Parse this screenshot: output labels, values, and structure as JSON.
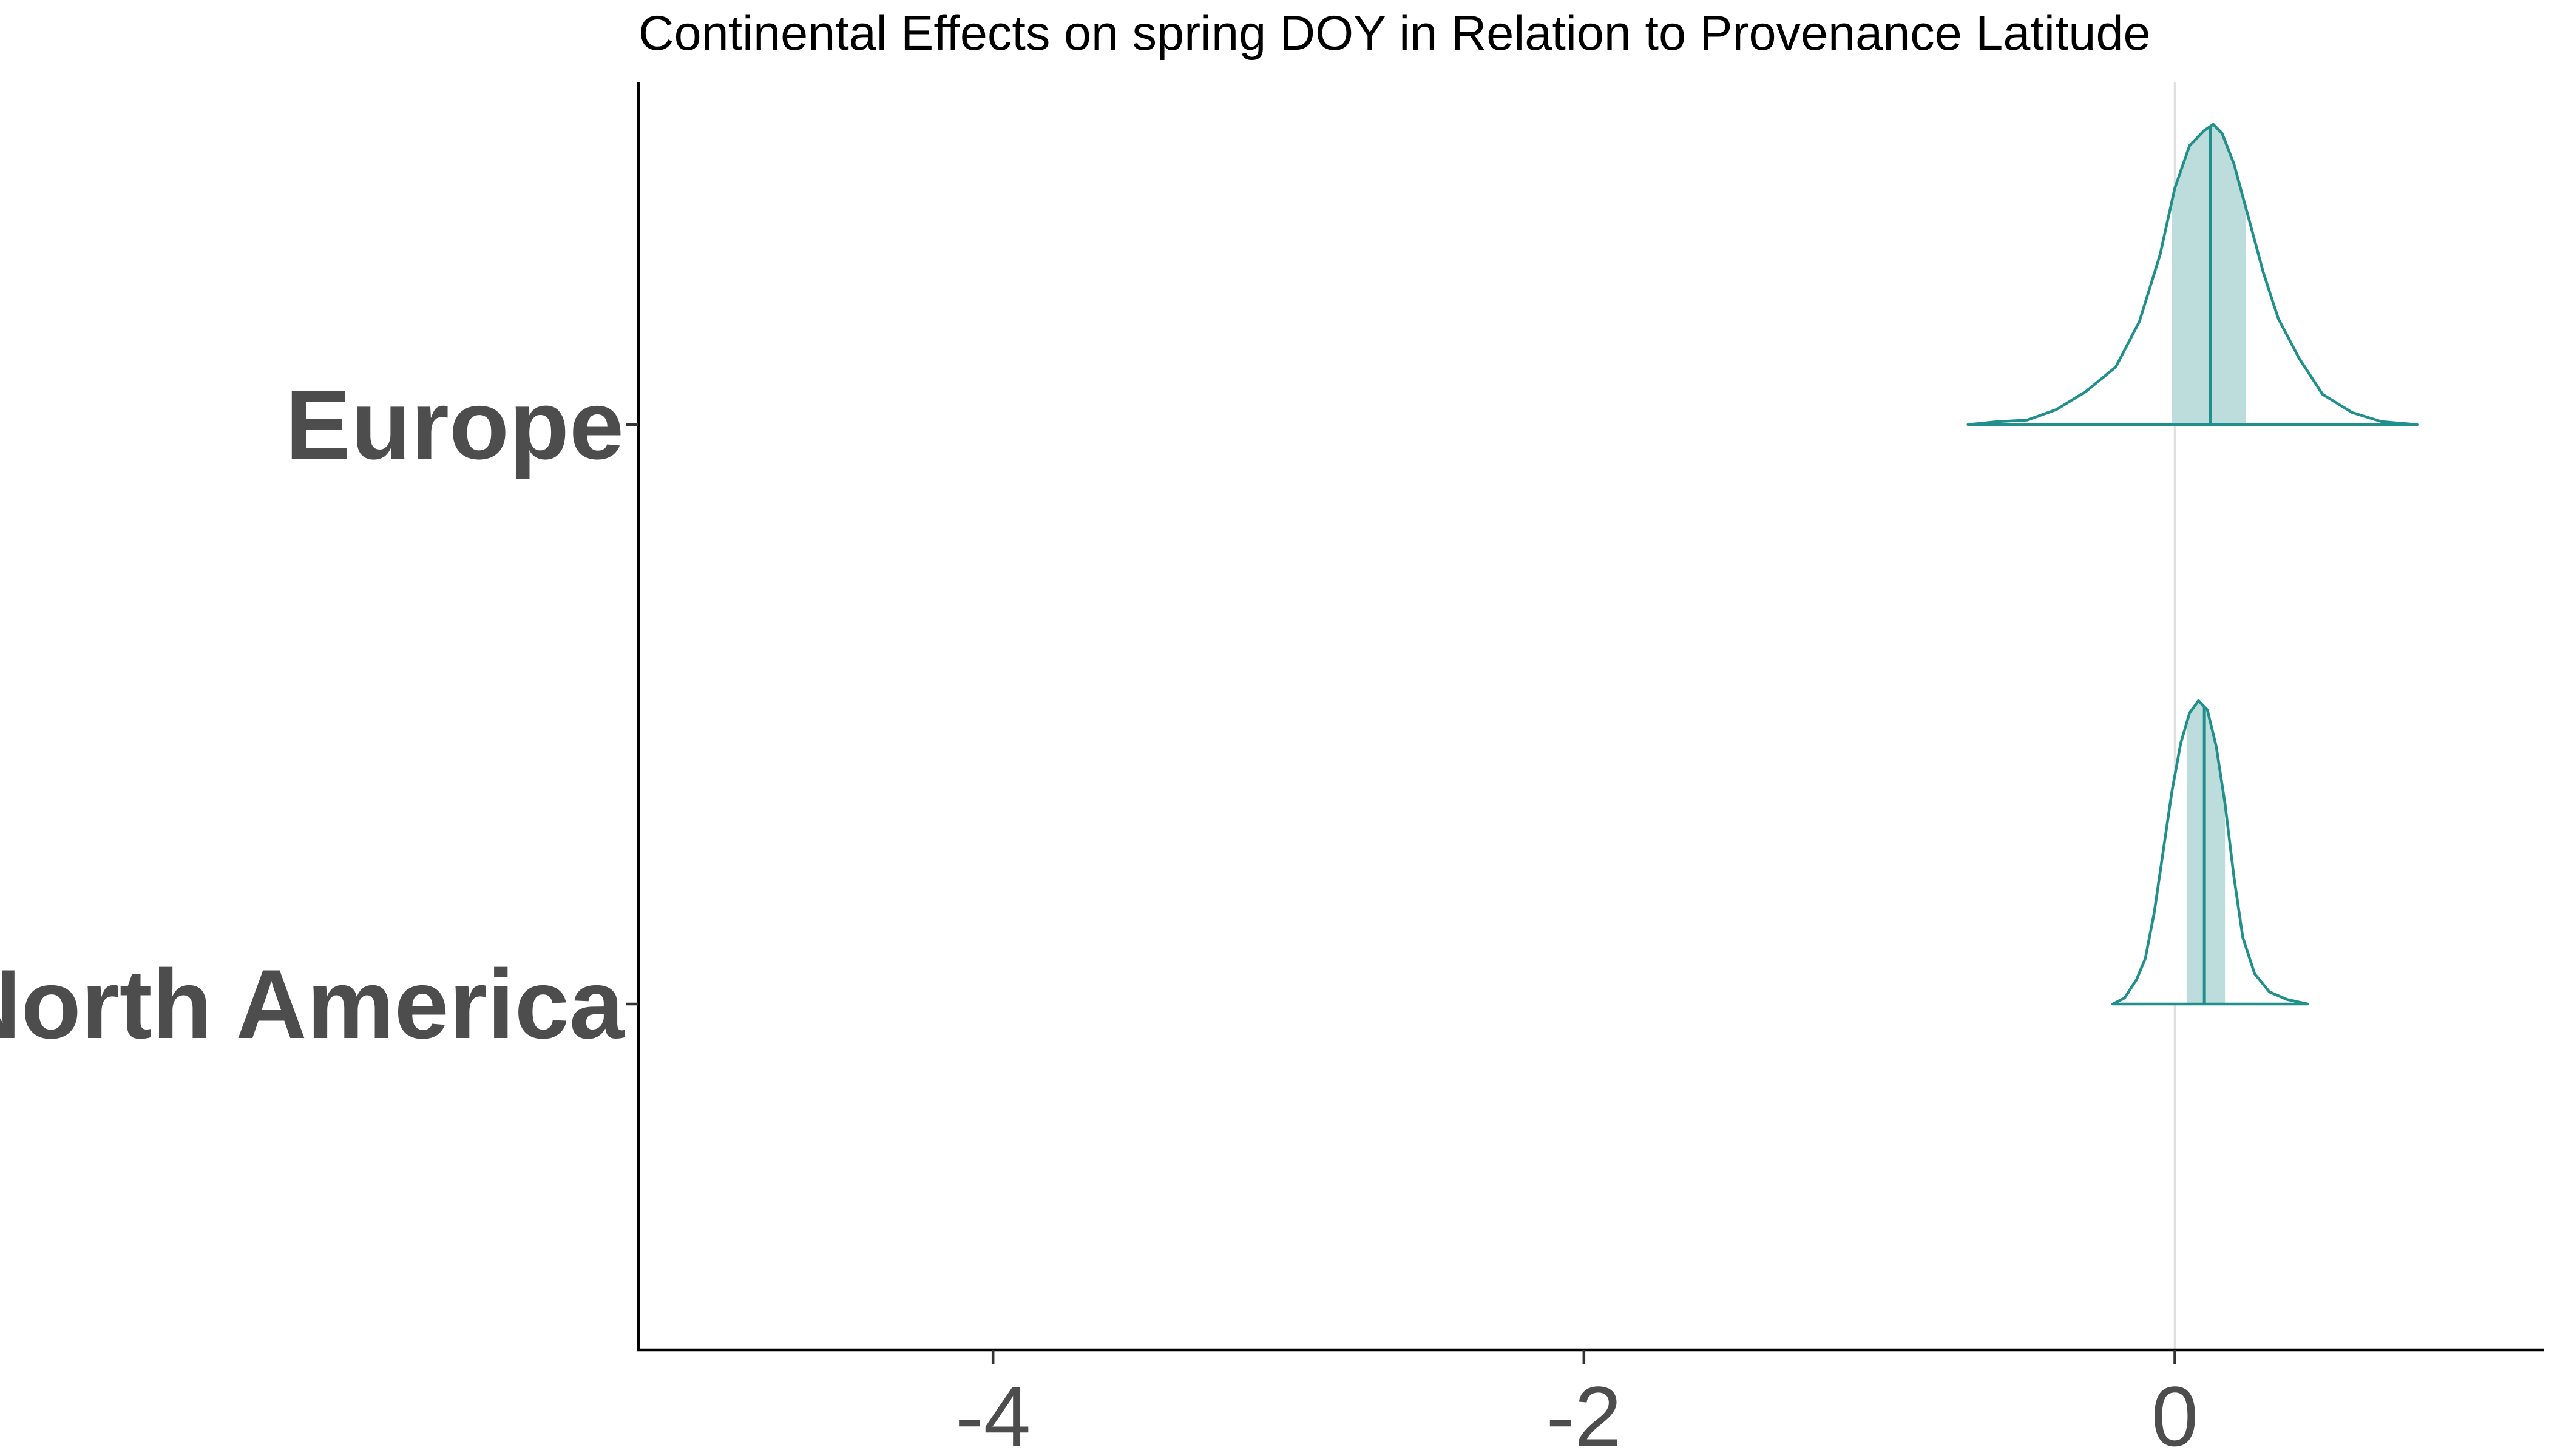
{
  "chart_data": {
    "type": "ridgeline",
    "title": "Continental Effects on spring DOY in Relation to Provenance Latitude",
    "xlabel": "",
    "ylabel": "",
    "xlim": [
      -5.2,
      1.25
    ],
    "x_ticks": [
      -4,
      -2,
      0
    ],
    "x_tick_labels": [
      "-4",
      "-2",
      "0"
    ],
    "reference_line_x": 0,
    "grid": false,
    "color": "#21908c",
    "band_opacity": 0.3,
    "series": [
      {
        "name": "Europe",
        "median": 0.12,
        "interval": [
          -0.01,
          0.24
        ],
        "density": [
          [
            -0.7,
            0.0
          ],
          [
            -0.6,
            0.01
          ],
          [
            -0.5,
            0.015
          ],
          [
            -0.4,
            0.05
          ],
          [
            -0.3,
            0.11
          ],
          [
            -0.2,
            0.19
          ],
          [
            -0.12,
            0.34
          ],
          [
            -0.05,
            0.56
          ],
          [
            0.0,
            0.78
          ],
          [
            0.05,
            0.92
          ],
          [
            0.1,
            0.97
          ],
          [
            0.13,
            0.99
          ],
          [
            0.16,
            0.96
          ],
          [
            0.2,
            0.86
          ],
          [
            0.25,
            0.68
          ],
          [
            0.3,
            0.5
          ],
          [
            0.35,
            0.35
          ],
          [
            0.42,
            0.22
          ],
          [
            0.5,
            0.1
          ],
          [
            0.6,
            0.04
          ],
          [
            0.7,
            0.01
          ],
          [
            0.82,
            0.0
          ]
        ]
      },
      {
        "name": "North America",
        "median": 0.1,
        "interval": [
          0.04,
          0.17
        ],
        "density": [
          [
            -0.21,
            0.0
          ],
          [
            -0.17,
            0.02
          ],
          [
            -0.13,
            0.08
          ],
          [
            -0.1,
            0.15
          ],
          [
            -0.07,
            0.3
          ],
          [
            -0.04,
            0.5
          ],
          [
            -0.01,
            0.7
          ],
          [
            0.02,
            0.86
          ],
          [
            0.05,
            0.96
          ],
          [
            0.08,
            1.0
          ],
          [
            0.11,
            0.97
          ],
          [
            0.14,
            0.85
          ],
          [
            0.17,
            0.66
          ],
          [
            0.2,
            0.42
          ],
          [
            0.23,
            0.22
          ],
          [
            0.27,
            0.1
          ],
          [
            0.32,
            0.04
          ],
          [
            0.38,
            0.015
          ],
          [
            0.45,
            0.0
          ]
        ]
      }
    ]
  }
}
